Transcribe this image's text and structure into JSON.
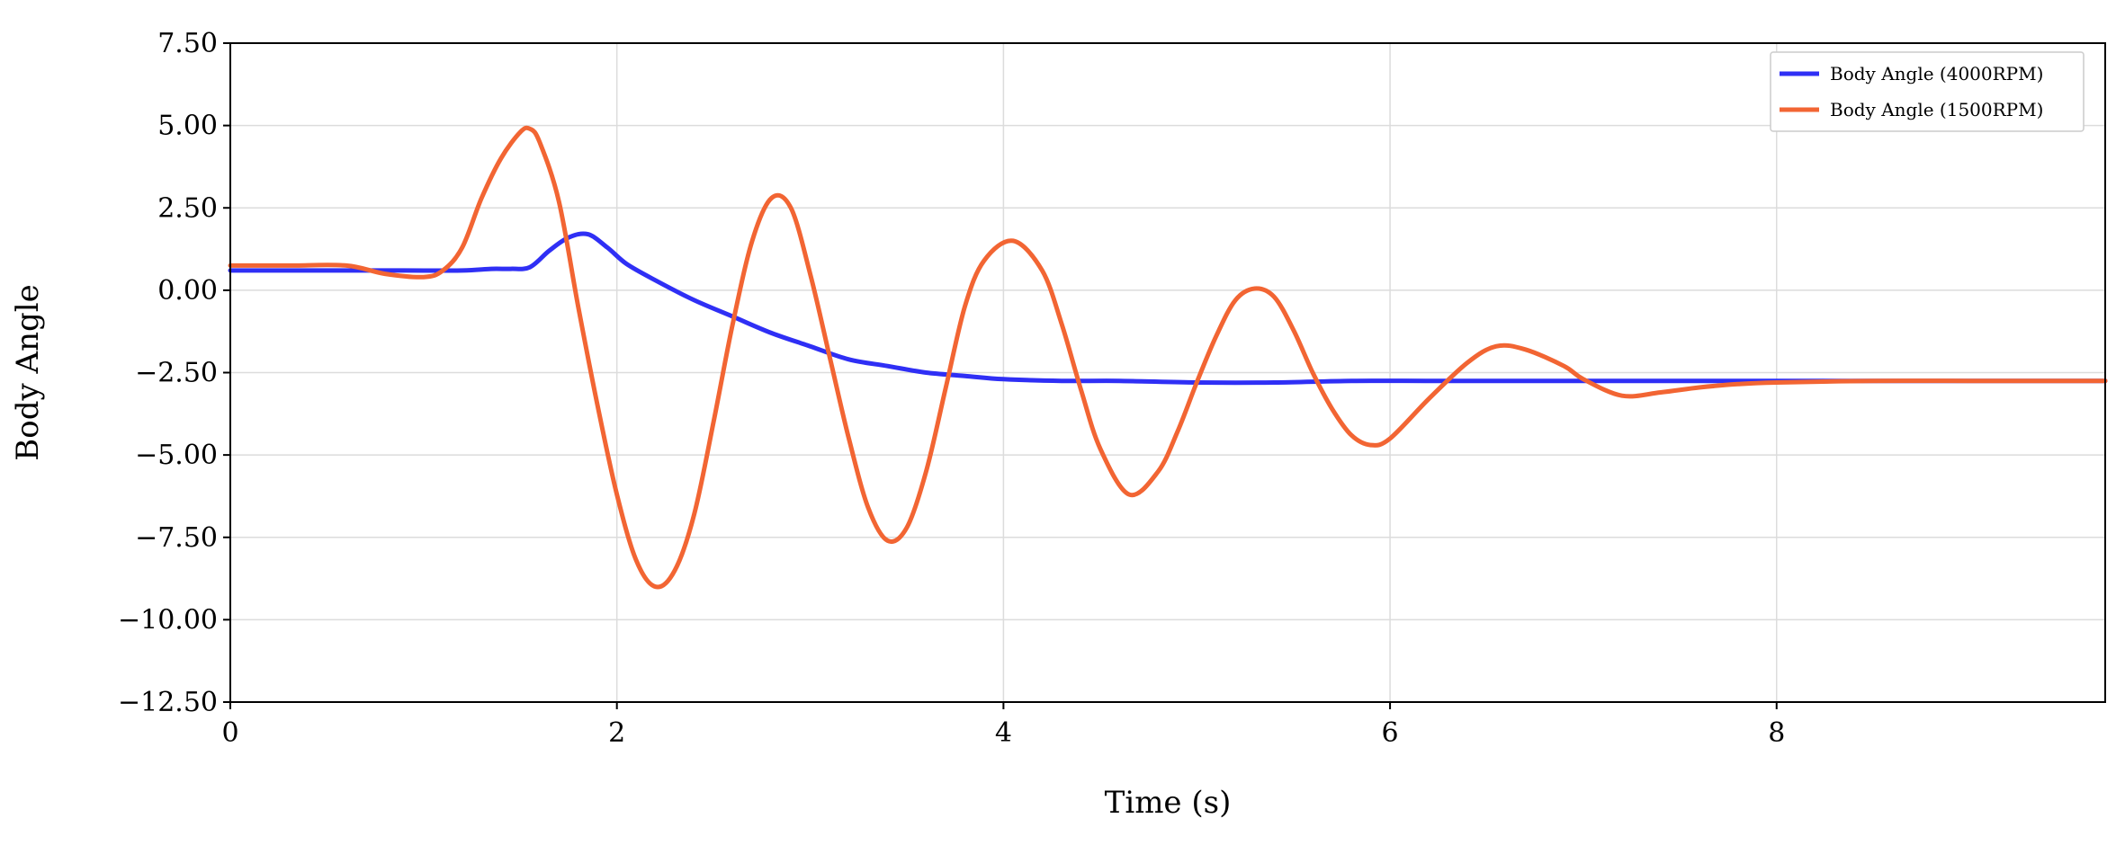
{
  "chart_data": {
    "type": "line",
    "xlabel": "Time (s)",
    "ylabel": "Body Angle",
    "xlim": [
      0,
      9.7
    ],
    "ylim": [
      -12.5,
      7.5
    ],
    "xticks": [
      "0",
      "2",
      "4",
      "6",
      "8"
    ],
    "xtick_values": [
      0,
      2,
      4,
      6,
      8
    ],
    "yticks": [
      "7.50",
      "5.00",
      "2.50",
      "0.00",
      "−2.50",
      "−5.00",
      "−7.50",
      "−10.00",
      "−12.50"
    ],
    "ytick_values": [
      7.5,
      5.0,
      2.5,
      0.0,
      -2.5,
      -5.0,
      -7.5,
      -10.0,
      -12.5
    ],
    "grid": true,
    "legend_position": "top-right",
    "series": [
      {
        "name": "Body Angle (4000RPM)",
        "color": "#2f2ff5",
        "x": [
          0,
          0.3,
          0.6,
          0.9,
          1.2,
          1.35,
          1.45,
          1.55,
          1.65,
          1.75,
          1.85,
          1.95,
          2.05,
          2.2,
          2.4,
          2.6,
          2.8,
          3.0,
          3.2,
          3.4,
          3.6,
          3.8,
          4.0,
          4.3,
          4.6,
          5.0,
          5.4,
          5.8,
          6.2,
          6.6,
          6.95,
          7.2,
          7.5,
          7.75,
          8.0,
          8.55,
          9.0,
          9.3,
          9.7
        ],
        "y": [
          0.6,
          0.6,
          0.6,
          0.6,
          0.6,
          0.65,
          0.65,
          0.7,
          1.2,
          1.6,
          1.7,
          1.3,
          0.8,
          0.3,
          -0.3,
          -0.8,
          -1.3,
          -1.7,
          -2.1,
          -2.3,
          -2.5,
          -2.6,
          -2.7,
          -2.75,
          -2.75,
          -2.8,
          -2.8,
          -2.75,
          -2.75,
          -2.75,
          -2.75,
          -2.75,
          -2.75,
          -2.75,
          -2.75,
          -2.75,
          -2.75,
          -2.75,
          -2.75
        ]
      },
      {
        "name": "Body Angle (1500RPM)",
        "color": "#f26533",
        "x": [
          0,
          0.3,
          0.6,
          0.8,
          1.0,
          1.1,
          1.2,
          1.3,
          1.4,
          1.5,
          1.55,
          1.6,
          1.7,
          1.8,
          1.9,
          2.0,
          2.1,
          2.2,
          2.3,
          2.4,
          2.5,
          2.6,
          2.7,
          2.8,
          2.9,
          3.0,
          3.1,
          3.2,
          3.3,
          3.4,
          3.5,
          3.6,
          3.7,
          3.8,
          3.9,
          4.05,
          4.2,
          4.3,
          4.4,
          4.5,
          4.65,
          4.8,
          4.9,
          5.0,
          5.1,
          5.2,
          5.3,
          5.4,
          5.5,
          5.6,
          5.7,
          5.8,
          5.9,
          6.0,
          6.2,
          6.4,
          6.55,
          6.7,
          6.9,
          7.0,
          7.2,
          7.4,
          7.6,
          7.8,
          8.0,
          8.5,
          9.0,
          9.7
        ],
        "y": [
          0.75,
          0.75,
          0.75,
          0.5,
          0.4,
          0.6,
          1.3,
          2.8,
          4.0,
          4.8,
          4.9,
          4.5,
          2.7,
          -0.5,
          -3.5,
          -6.2,
          -8.2,
          -9.0,
          -8.5,
          -6.8,
          -4.0,
          -1.0,
          1.5,
          2.8,
          2.5,
          0.5,
          -2.0,
          -4.5,
          -6.6,
          -7.6,
          -7.2,
          -5.5,
          -3.0,
          -0.5,
          0.9,
          1.5,
          0.6,
          -1.0,
          -3.0,
          -4.8,
          -6.2,
          -5.5,
          -4.3,
          -2.8,
          -1.4,
          -0.3,
          0.05,
          -0.2,
          -1.2,
          -2.5,
          -3.6,
          -4.4,
          -4.7,
          -4.5,
          -3.3,
          -2.2,
          -1.7,
          -1.8,
          -2.3,
          -2.7,
          -3.2,
          -3.1,
          -2.95,
          -2.85,
          -2.8,
          -2.75,
          -2.75,
          -2.75
        ]
      }
    ]
  }
}
